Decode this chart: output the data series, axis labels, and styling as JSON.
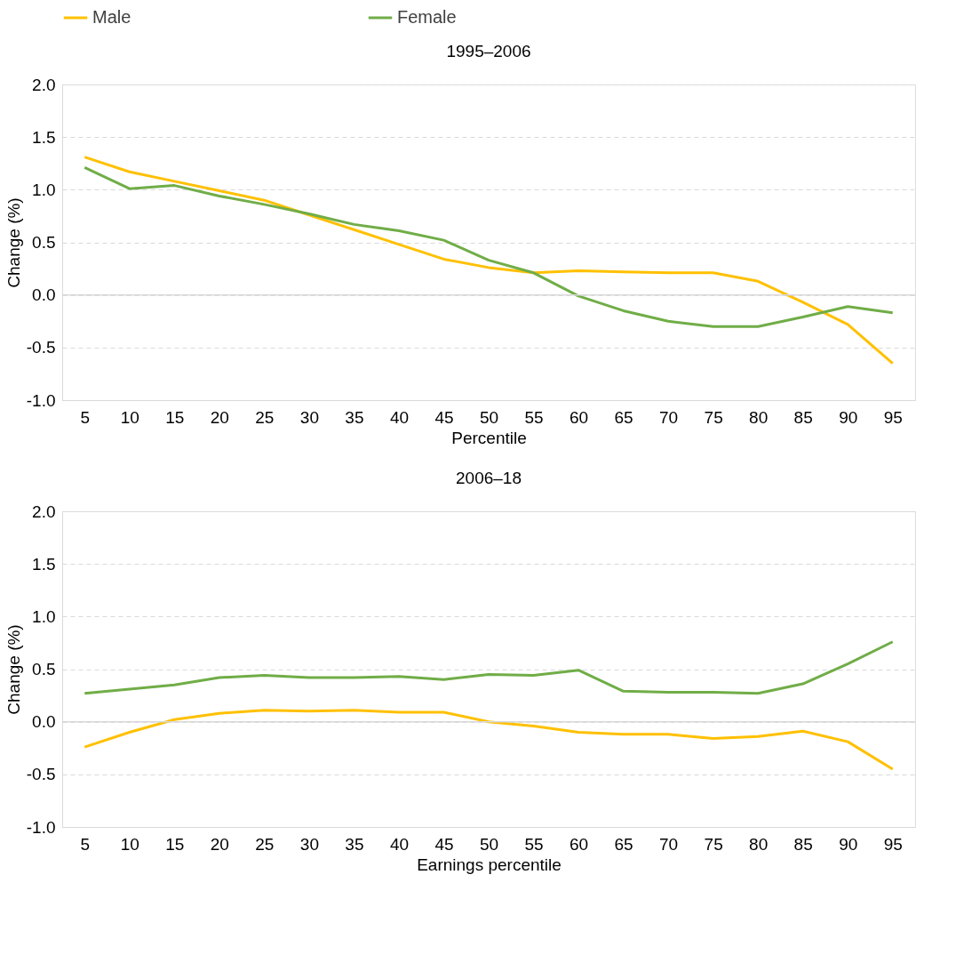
{
  "chart_data": [
    {
      "type": "line",
      "title": "1995–2006",
      "xlabel": "Percentile",
      "ylabel": "Change (%)",
      "categories": [
        "5",
        "10",
        "15",
        "20",
        "25",
        "30",
        "35",
        "40",
        "45",
        "50",
        "55",
        "60",
        "65",
        "70",
        "75",
        "80",
        "85",
        "90",
        "95"
      ],
      "series": [
        {
          "name": "Male",
          "color": "#ffc000",
          "values": [
            1.31,
            1.17,
            1.08,
            0.99,
            0.9,
            0.76,
            0.62,
            0.48,
            0.34,
            0.26,
            0.21,
            0.23,
            0.22,
            0.21,
            0.21,
            0.13,
            -0.07,
            -0.28,
            -0.65
          ]
        },
        {
          "name": "Female",
          "color": "#70ad47",
          "values": [
            1.21,
            1.01,
            1.04,
            0.94,
            0.86,
            0.77,
            0.67,
            0.61,
            0.52,
            0.33,
            0.21,
            -0.01,
            -0.15,
            -0.25,
            -0.3,
            -0.3,
            -0.21,
            -0.11,
            -0.17
          ]
        }
      ],
      "ylim": [
        -1.0,
        2.0
      ],
      "yticks": [
        {
          "value": -1.0,
          "label": "-1.0"
        },
        {
          "value": -0.5,
          "label": "-0.5"
        },
        {
          "value": 0.0,
          "label": "0.0"
        },
        {
          "value": 0.5,
          "label": "0.5"
        },
        {
          "value": 1.0,
          "label": "1.0"
        },
        {
          "value": 1.5,
          "label": "1.5"
        },
        {
          "value": 2.0,
          "label": "2.0"
        }
      ],
      "grid": "y",
      "legend": "top",
      "marker": "none",
      "line_style": "solid"
    },
    {
      "type": "line",
      "title": "2006–18",
      "xlabel": "Earnings percentile",
      "ylabel": "Change (%)",
      "categories": [
        "5",
        "10",
        "15",
        "20",
        "25",
        "30",
        "35",
        "40",
        "45",
        "50",
        "55",
        "60",
        "65",
        "70",
        "75",
        "80",
        "85",
        "90",
        "95"
      ],
      "series": [
        {
          "name": "Male",
          "color": "#ffc000",
          "values": [
            -0.24,
            -0.1,
            0.02,
            0.08,
            0.11,
            0.1,
            0.11,
            0.09,
            0.09,
            0.0,
            -0.04,
            -0.1,
            -0.12,
            -0.12,
            -0.16,
            -0.14,
            -0.09,
            -0.19,
            -0.45
          ]
        },
        {
          "name": "Female",
          "color": "#70ad47",
          "values": [
            0.27,
            0.31,
            0.35,
            0.42,
            0.44,
            0.42,
            0.42,
            0.43,
            0.4,
            0.45,
            0.44,
            0.49,
            0.29,
            0.28,
            0.28,
            0.27,
            0.36,
            0.55,
            0.76
          ]
        }
      ],
      "ylim": [
        -1.0,
        2.0
      ],
      "yticks": [
        {
          "value": -1.0,
          "label": "-1.0"
        },
        {
          "value": -0.5,
          "label": "-0.5"
        },
        {
          "value": 0.0,
          "label": "0.0"
        },
        {
          "value": 0.5,
          "label": "0.5"
        },
        {
          "value": 1.0,
          "label": "1.0"
        },
        {
          "value": 1.5,
          "label": "1.5"
        },
        {
          "value": 2.0,
          "label": "2.0"
        }
      ],
      "grid": "y",
      "legend": false,
      "marker": "none",
      "line_style": "solid"
    }
  ]
}
